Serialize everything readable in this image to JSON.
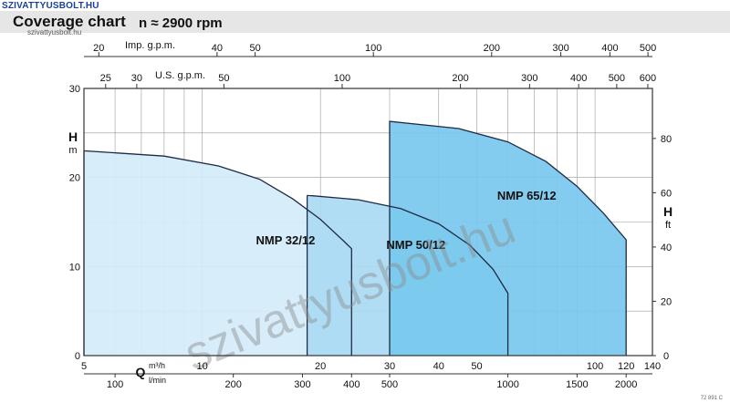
{
  "header": {
    "logo": "SZIVATTYUSBOLT.HU",
    "logo_sub": "szivattyusbolt.hu",
    "title": "Coverage chart",
    "subtitle": "n ≈ 2900 rpm",
    "code": "72 891 C"
  },
  "watermark": "szivattyusbolt.hu",
  "colors": {
    "nmp32": "#d4ecf9",
    "nmp50": "#a9daf3",
    "nmp65": "#78c8ee",
    "grid": "#9a9a9a",
    "frame": "#333333",
    "title_bar": "#e6e6e6"
  },
  "chart_data": {
    "type": "area",
    "x_scale": "log",
    "x_unit": "m³/h",
    "xlim": [
      5,
      140
    ],
    "y_left": {
      "label": "H",
      "unit": "m",
      "ylim": [
        0,
        30
      ],
      "ticks": [
        0,
        10,
        20,
        30
      ]
    },
    "y_right": {
      "label": "H",
      "unit": "ft",
      "ticks": [
        0,
        20,
        40,
        60,
        80
      ]
    },
    "x_primary": {
      "label": "Q",
      "unit": "m³/h",
      "ticks": [
        5,
        10,
        20,
        30,
        40,
        50,
        100,
        120,
        140
      ]
    },
    "x_lmin": {
      "unit": "l/min",
      "ticks": [
        100,
        200,
        300,
        400,
        500,
        1000,
        1500,
        2000
      ]
    },
    "x_imp": {
      "label": "Imp. g.p.m.",
      "ticks": [
        20,
        40,
        50,
        100,
        200,
        300,
        400,
        500
      ]
    },
    "x_us": {
      "label": "U.S. g.p.m.",
      "ticks": [
        25,
        30,
        50,
        100,
        200,
        300,
        400,
        500,
        600
      ]
    },
    "series": [
      {
        "name": "NMP 32/12",
        "q_min": 5,
        "q_max": 24,
        "curve": [
          [
            5,
            23
          ],
          [
            8,
            22.4
          ],
          [
            11,
            21.3
          ],
          [
            14,
            19.8
          ],
          [
            17,
            17.6
          ],
          [
            20,
            15.3
          ],
          [
            23,
            12.8
          ],
          [
            24,
            12
          ]
        ]
      },
      {
        "name": "NMP 50/12",
        "q_min": 18.5,
        "q_max": 60,
        "curve": [
          [
            18.5,
            18
          ],
          [
            25,
            17.5
          ],
          [
            32,
            16.5
          ],
          [
            40,
            14.8
          ],
          [
            48,
            12.4
          ],
          [
            55,
            9.7
          ],
          [
            60,
            7
          ]
        ]
      },
      {
        "name": "NMP 65/12",
        "q_min": 30,
        "q_max": 120,
        "curve": [
          [
            30,
            26.3
          ],
          [
            45,
            25.5
          ],
          [
            60,
            24
          ],
          [
            75,
            21.8
          ],
          [
            90,
            19
          ],
          [
            105,
            16
          ],
          [
            120,
            13
          ]
        ]
      }
    ]
  }
}
